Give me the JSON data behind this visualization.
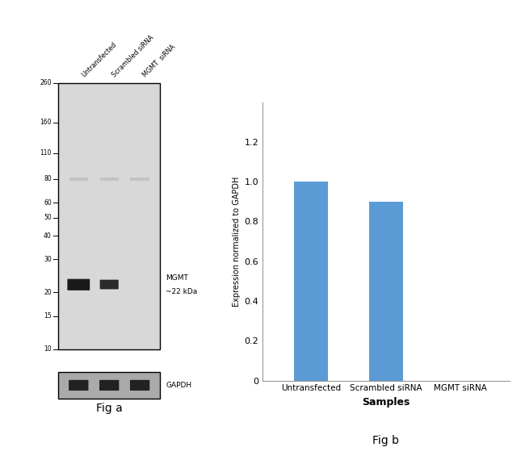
{
  "fig_a": {
    "lane_labels": [
      "Untransfected",
      "Scrambled siRNA",
      "MGMT  siRNA"
    ],
    "mw_markers": [
      260,
      160,
      110,
      80,
      60,
      50,
      40,
      30,
      20,
      15,
      10
    ],
    "band_label_line1": "MGMT",
    "band_label_line2": "~22 kDa",
    "gapdh_label": "GAPDH",
    "caption": "Fig a",
    "gel_bg": "#c8c8c8",
    "gel_bg_inner": "#d8d8d8",
    "band_color_1": "#1a1a1a",
    "band_color_2": "#2a2a2a",
    "faint_band_color": "#b0b0b0",
    "gapdh_bg": "#aaaaaa",
    "gapdh_band_color": "#222222"
  },
  "fig_b": {
    "categories": [
      "Untransfected",
      "Scrambled siRNA",
      "MGMT siRNA"
    ],
    "values": [
      1.0,
      0.9,
      0.0
    ],
    "bar_color": "#5B9BD5",
    "ylabel": "Expression normalized to GAPDH",
    "xlabel": "Samples",
    "ylim": [
      0,
      1.4
    ],
    "yticks": [
      0,
      0.2,
      0.4,
      0.6,
      0.8,
      1.0,
      1.2
    ],
    "caption": "Fig b"
  },
  "background_color": "#ffffff",
  "fig_width": 6.5,
  "fig_height": 5.75,
  "fig_a_caption": "Fig a",
  "fig_b_caption": "Fig b"
}
